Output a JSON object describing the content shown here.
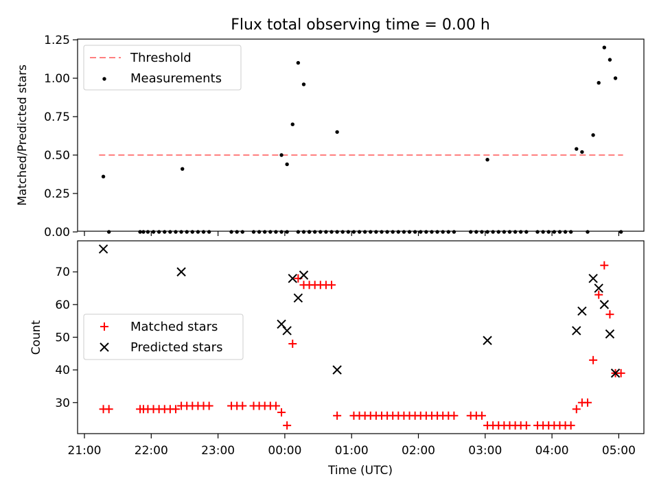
{
  "title": "Flux total observing time = 0.00 h",
  "xlabel": "Time (UTC)",
  "x_ticks": [
    "21:00",
    "22:00",
    "23:00",
    "00:00",
    "01:00",
    "02:00",
    "03:00",
    "04:00",
    "05:00"
  ],
  "chart_data": [
    {
      "type": "scatter",
      "panel": "top",
      "ylabel": "Matched/Predicted stars",
      "ylim": [
        0,
        1.25
      ],
      "yticks": [
        "0.00",
        "0.25",
        "0.50",
        "0.75",
        "1.00",
        "1.25"
      ],
      "legend_position": "upper-left",
      "threshold": {
        "name": "Threshold",
        "value": 0.5,
        "x_range": [
          "21:15",
          "05:02"
        ],
        "color": "#ff7f7f"
      },
      "series": [
        {
          "name": "Measurements",
          "color": "#000000",
          "x": [
            "21:17",
            "21:22",
            "21:50",
            "21:53",
            "21:57",
            "22:02",
            "22:07",
            "22:12",
            "22:17",
            "22:22",
            "22:27",
            "22:28",
            "22:32",
            "22:37",
            "22:42",
            "22:47",
            "22:52",
            "23:12",
            "23:17",
            "23:22",
            "23:32",
            "23:37",
            "23:42",
            "23:47",
            "23:52",
            "23:57",
            "23:57",
            "00:02",
            "00:02",
            "00:07",
            "00:12",
            "00:12",
            "00:17",
            "00:17",
            "00:22",
            "00:22",
            "00:27",
            "00:32",
            "00:37",
            "00:42",
            "00:47",
            "00:47",
            "00:52",
            "00:57",
            "01:02",
            "01:07",
            "01:12",
            "01:17",
            "01:22",
            "01:27",
            "01:32",
            "01:37",
            "01:42",
            "01:47",
            "01:52",
            "01:57",
            "02:02",
            "02:07",
            "02:12",
            "02:17",
            "02:22",
            "02:27",
            "02:32",
            "02:47",
            "02:52",
            "02:57",
            "03:02",
            "03:02",
            "03:07",
            "03:12",
            "03:17",
            "03:22",
            "03:27",
            "03:32",
            "03:37",
            "03:47",
            "03:52",
            "03:57",
            "04:02",
            "04:07",
            "04:12",
            "04:17",
            "04:22",
            "04:27",
            "04:32",
            "04:37",
            "04:42",
            "04:47",
            "04:52",
            "04:57",
            "05:02"
          ],
          "y": [
            0.36,
            0.0,
            0.0,
            0.0,
            0.0,
            0.0,
            0.0,
            0.0,
            0.0,
            0.0,
            0.0,
            0.41,
            0.0,
            0.0,
            0.0,
            0.0,
            0.0,
            0.0,
            0.0,
            0.0,
            0.0,
            0.0,
            0.0,
            0.0,
            0.0,
            0.0,
            0.5,
            0.0,
            0.44,
            0.7,
            0.0,
            1.1,
            0.0,
            0.96,
            0.0,
            0.0,
            0.0,
            0.0,
            0.0,
            0.0,
            0.0,
            0.65,
            0.0,
            0.0,
            0.0,
            0.0,
            0.0,
            0.0,
            0.0,
            0.0,
            0.0,
            0.0,
            0.0,
            0.0,
            0.0,
            0.0,
            0.0,
            0.0,
            0.0,
            0.0,
            0.0,
            0.0,
            0.0,
            0.0,
            0.0,
            0.0,
            0.0,
            0.47,
            0.0,
            0.0,
            0.0,
            0.0,
            0.0,
            0.0,
            0.0,
            0.0,
            0.0,
            0.0,
            0.0,
            0.0,
            0.0,
            0.0,
            0.54,
            0.52,
            0.0,
            0.63,
            0.97,
            1.2,
            1.12,
            1.0,
            0.0
          ]
        }
      ]
    },
    {
      "type": "scatter",
      "panel": "bottom",
      "ylabel": "Count",
      "ylim": [
        20.5,
        79.5
      ],
      "yticks": [
        "30",
        "40",
        "50",
        "60",
        "70"
      ],
      "legend_position": "center-left",
      "series": [
        {
          "name": "Matched stars",
          "marker": "+",
          "color": "#ff0000",
          "x": [
            "21:17",
            "21:22",
            "21:50",
            "21:53",
            "21:57",
            "22:02",
            "22:07",
            "22:12",
            "22:17",
            "22:22",
            "22:27",
            "22:32",
            "22:37",
            "22:42",
            "22:47",
            "22:52",
            "23:12",
            "23:17",
            "23:22",
            "23:32",
            "23:37",
            "23:42",
            "23:47",
            "23:52",
            "23:57",
            "00:02",
            "00:07",
            "00:12",
            "00:17",
            "00:22",
            "00:27",
            "00:32",
            "00:37",
            "00:42",
            "00:47",
            "01:02",
            "01:07",
            "01:12",
            "01:17",
            "01:22",
            "01:27",
            "01:32",
            "01:37",
            "01:42",
            "01:47",
            "01:52",
            "01:57",
            "02:02",
            "02:07",
            "02:12",
            "02:17",
            "02:22",
            "02:27",
            "02:32",
            "02:47",
            "02:52",
            "02:57",
            "03:02",
            "03:07",
            "03:12",
            "03:17",
            "03:22",
            "03:27",
            "03:32",
            "03:37",
            "03:47",
            "03:52",
            "03:57",
            "04:02",
            "04:07",
            "04:12",
            "04:17",
            "04:22",
            "04:27",
            "04:32",
            "04:37",
            "04:42",
            "04:47",
            "04:52",
            "04:57",
            "05:02"
          ],
          "y": [
            28,
            28,
            28,
            28,
            28,
            28,
            28,
            28,
            28,
            28,
            29,
            29,
            29,
            29,
            29,
            29,
            29,
            29,
            29,
            29,
            29,
            29,
            29,
            29,
            27,
            23,
            48,
            68,
            66,
            66,
            66,
            66,
            66,
            66,
            26,
            26,
            26,
            26,
            26,
            26,
            26,
            26,
            26,
            26,
            26,
            26,
            26,
            26,
            26,
            26,
            26,
            26,
            26,
            26,
            26,
            26,
            26,
            23,
            23,
            23,
            23,
            23,
            23,
            23,
            23,
            23,
            23,
            23,
            23,
            23,
            23,
            23,
            28,
            30,
            30,
            43,
            63,
            72,
            57,
            39,
            39
          ]
        },
        {
          "name": "Predicted stars",
          "marker": "x",
          "color": "#000000",
          "x": [
            "21:17",
            "22:27",
            "23:57",
            "00:02",
            "00:07",
            "00:12",
            "00:17",
            "00:47",
            "03:02",
            "04:22",
            "04:27",
            "04:37",
            "04:42",
            "04:47",
            "04:52",
            "04:57"
          ],
          "y": [
            77,
            70,
            54,
            52,
            68,
            62,
            69,
            40,
            49,
            52,
            58,
            68,
            65,
            60,
            51,
            39
          ]
        }
      ]
    }
  ]
}
